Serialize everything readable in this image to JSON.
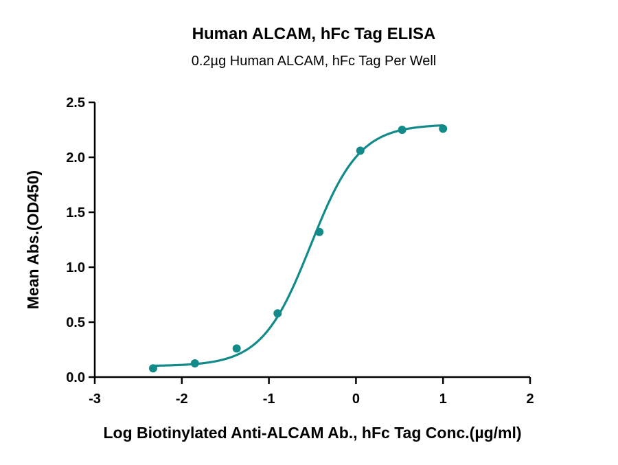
{
  "chart_data": {
    "type": "scatter",
    "title": "Human ALCAM, hFc Tag ELISA",
    "subtitle": "0.2µg Human ALCAM, hFc Tag Per Well",
    "xlabel": "Log Biotinylated Anti-ALCAM Ab., hFc Tag Conc.(µg/ml)",
    "ylabel": "Mean Abs.(OD450)",
    "xlim": [
      -3,
      2
    ],
    "ylim": [
      0,
      2.5
    ],
    "x_ticks": [
      -3,
      -2,
      -1,
      0,
      1,
      2
    ],
    "x_tick_labels": [
      "-3",
      "-2",
      "-1",
      "0",
      "1",
      "2"
    ],
    "y_ticks": [
      0.0,
      0.5,
      1.0,
      1.5,
      2.0,
      2.5
    ],
    "y_tick_labels": [
      "0.0",
      "0.5",
      "1.0",
      "1.5",
      "2.0",
      "2.5"
    ],
    "grid": false,
    "color": "#138a8a",
    "series": [
      {
        "x": [
          -2.33,
          -1.85,
          -1.37,
          -0.9,
          -0.42,
          0.05,
          0.53,
          1.0
        ],
        "y": [
          0.08,
          0.125,
          0.26,
          0.58,
          1.32,
          2.06,
          2.25,
          2.26
        ],
        "fit": {
          "model": "4PL",
          "bottom": 0.1,
          "top": 2.3,
          "logEC50": -0.52,
          "hill": 1.55,
          "x_range": [
            -2.33,
            1.0
          ]
        }
      }
    ]
  }
}
